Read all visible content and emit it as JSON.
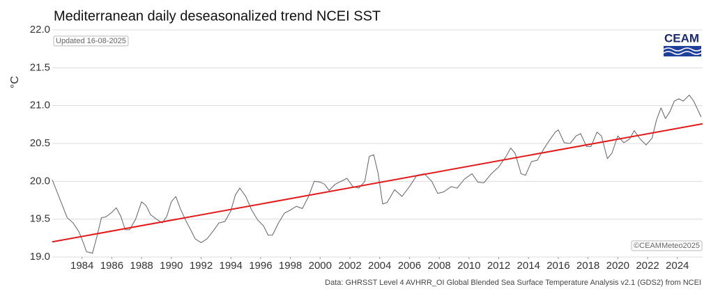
{
  "chart_data": {
    "type": "line",
    "title": "Mediterranean daily deseasonalized trend NCEI SST",
    "updated": "Updated 16-08-2025",
    "y_label": "°C",
    "logo": "CEAM",
    "credit": "©CEAMMeteo2025",
    "source": "Data: GHRSST Level 4 AVHRR_OI Global Blended Sea Surface Temperature Analysis v2.1 (GDS2) from NCEI",
    "grid": true,
    "xlim": [
      1982,
      2025.7
    ],
    "ylim": [
      19.0,
      22.0
    ],
    "xticks": [
      1984,
      1986,
      1988,
      1990,
      1992,
      1994,
      1996,
      1998,
      2000,
      2002,
      2004,
      2006,
      2008,
      2010,
      2012,
      2014,
      2016,
      2018,
      2020,
      2022,
      2024
    ],
    "yticks": [
      {
        "value": 19.0,
        "label": "19.0"
      },
      {
        "value": 19.5,
        "label": "19.5"
      },
      {
        "value": 20.0,
        "label": "20.0"
      },
      {
        "value": 20.5,
        "label": "20.5"
      },
      {
        "value": 21.0,
        "label": "21.0"
      },
      {
        "value": 21.5,
        "label": "21.5"
      },
      {
        "value": 22.0,
        "label": "22.0"
      }
    ],
    "x": [
      1982.0,
      1982.5,
      1983.0,
      1983.4,
      1983.8,
      1984.1,
      1984.3,
      1984.7,
      1985.0,
      1985.3,
      1985.6,
      1986.0,
      1986.3,
      1986.6,
      1986.9,
      1987.2,
      1987.6,
      1988.0,
      1988.3,
      1988.6,
      1989.0,
      1989.4,
      1989.7,
      1990.0,
      1990.3,
      1990.6,
      1991.0,
      1991.3,
      1991.6,
      1992.0,
      1992.4,
      1992.8,
      1993.2,
      1993.6,
      1994.0,
      1994.3,
      1994.6,
      1995.0,
      1995.4,
      1995.8,
      1996.2,
      1996.5,
      1996.8,
      1997.2,
      1997.6,
      1998.0,
      1998.4,
      1998.8,
      1999.2,
      1999.6,
      2000.0,
      2000.3,
      2000.6,
      2001.0,
      2001.4,
      2001.8,
      2002.2,
      2002.6,
      2003.0,
      2003.3,
      2003.6,
      2003.9,
      2004.2,
      2004.5,
      2005.0,
      2005.5,
      2006.0,
      2006.5,
      2007.0,
      2007.5,
      2007.9,
      2008.3,
      2008.8,
      2009.2,
      2009.7,
      2010.2,
      2010.6,
      2011.0,
      2011.5,
      2012.0,
      2012.5,
      2012.8,
      2013.1,
      2013.5,
      2013.8,
      2014.2,
      2014.6,
      2015.0,
      2015.4,
      2015.8,
      2016.0,
      2016.4,
      2016.8,
      2017.2,
      2017.5,
      2017.9,
      2018.2,
      2018.6,
      2018.9,
      2019.3,
      2019.6,
      2020.0,
      2020.4,
      2020.8,
      2021.1,
      2021.5,
      2021.9,
      2022.3,
      2022.6,
      2022.9,
      2023.2,
      2023.5,
      2023.8,
      2024.1,
      2024.4,
      2024.8,
      2025.1,
      2025.6
    ],
    "series": [
      {
        "color": "#6e6e6e",
        "values": [
          20.02,
          19.77,
          19.52,
          19.45,
          19.33,
          19.18,
          19.07,
          19.05,
          19.27,
          19.52,
          19.53,
          19.59,
          19.65,
          19.54,
          19.36,
          19.36,
          19.5,
          19.73,
          19.68,
          19.56,
          19.5,
          19.45,
          19.54,
          19.73,
          19.8,
          19.64,
          19.47,
          19.36,
          19.24,
          19.19,
          19.24,
          19.34,
          19.45,
          19.47,
          19.61,
          19.82,
          19.91,
          19.8,
          19.62,
          19.49,
          19.41,
          19.29,
          19.29,
          19.45,
          19.58,
          19.62,
          19.67,
          19.64,
          19.79,
          20.0,
          19.99,
          19.96,
          19.88,
          19.96,
          20.0,
          20.04,
          19.93,
          19.91,
          20.0,
          20.33,
          20.35,
          20.1,
          19.7,
          19.72,
          19.89,
          19.8,
          19.93,
          20.08,
          20.1,
          20.0,
          19.84,
          19.86,
          19.93,
          19.91,
          20.03,
          20.1,
          19.99,
          19.98,
          20.1,
          20.19,
          20.33,
          20.44,
          20.37,
          20.1,
          20.08,
          20.26,
          20.28,
          20.42,
          20.54,
          20.65,
          20.68,
          20.51,
          20.5,
          20.6,
          20.63,
          20.46,
          20.46,
          20.65,
          20.6,
          20.3,
          20.37,
          20.6,
          20.51,
          20.56,
          20.67,
          20.56,
          20.48,
          20.57,
          20.81,
          20.97,
          20.83,
          20.92,
          21.06,
          21.09,
          21.06,
          21.14,
          21.06,
          20.85
        ]
      }
    ],
    "trend": {
      "color": "#e31a1c",
      "x": [
        1982.0,
        2025.7
      ],
      "values": [
        19.2,
        20.76
      ]
    }
  }
}
